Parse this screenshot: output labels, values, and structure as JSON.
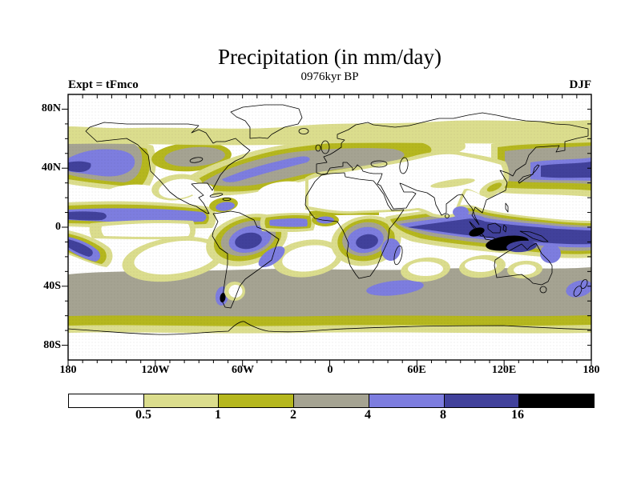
{
  "header": {
    "title": "Precipitation (in mm/day)",
    "subtitle": "0976kyr BP",
    "experiment_label": "Expt = tFmco",
    "season": "DJF"
  },
  "axes": {
    "lat_tick_labels": [
      "80N",
      "40N",
      "0",
      "40S",
      "80S"
    ],
    "lon_tick_labels": [
      "180",
      "120W",
      "60W",
      "0",
      "60E",
      "120E",
      "180"
    ],
    "lat_range_deg": [
      -90,
      90
    ],
    "lon_range_deg": [
      -180,
      180
    ],
    "minor_tick_interval_deg": 10
  },
  "colorbar": {
    "labels": [
      "0.5",
      "1",
      "2",
      "4",
      "8",
      "16"
    ],
    "levels_mm_day": [
      0.5,
      1,
      2,
      4,
      8,
      16
    ],
    "colors": [
      "#ffffff",
      "#dbdd8d",
      "#b5b71e",
      "#a5a392",
      "#7d7ddf",
      "#41419b",
      "#000000"
    ],
    "units": "mm/day",
    "label_position": "at segment boundaries"
  },
  "chart_data": {
    "type": "heatmap",
    "title": "Precipitation (in mm/day)",
    "subtitle": "0976kyr BP",
    "experiment": "tFmco",
    "season": "DJF",
    "projection": "equirectangular world map with coastlines",
    "lon_axis": {
      "ticks": [
        "180",
        "120W",
        "60W",
        "0",
        "60E",
        "120E",
        "180"
      ],
      "range": [
        -180,
        180
      ]
    },
    "lat_axis": {
      "ticks": [
        "80N",
        "40N",
        "0",
        "40S",
        "80S"
      ],
      "range": [
        -90,
        90
      ]
    },
    "contour_levels_mm_day": [
      0.5,
      1,
      2,
      4,
      8,
      16
    ],
    "palette": [
      "#ffffff",
      "#dbdd8d",
      "#b5b71e",
      "#a5a392",
      "#7d7ddf",
      "#41419b",
      "#000000"
    ],
    "legend_position": "horizontal colorbar below map",
    "grid": false,
    "features": [
      {
        "region": "Indian Ocean / Maritime Continent band",
        "lon": "50E-180",
        "lat": "5N-15S",
        "precip_mm_day": "8-16, >16 (black) over Indonesia and north of Australia"
      },
      {
        "region": "Equatorial black maxima",
        "lon": "96E-137E",
        "lat": "0-16S",
        "precip_mm_day": ">16"
      },
      {
        "region": "NH Pacific storm track",
        "lon": "140E-125W",
        "lat": "30N-52N",
        "precip_mm_day": "4-8, core 8-16 near Japan and dateline"
      },
      {
        "region": "NH Atlantic storm track",
        "lon": "75W-15W",
        "lat": "32N-50N",
        "precip_mm_day": "4-8 in gray 2-4 envelope"
      },
      {
        "region": "Pacific ITCZ",
        "lon": "180-90W",
        "lat": "2N-12N",
        "precip_mm_day": "4-8, 8-16 just east of dateline"
      },
      {
        "region": "SPCZ",
        "lon": "150E-145W",
        "lat": "3S-30S",
        "precip_mm_day": "4-8, 8-16 near dateline"
      },
      {
        "region": "Equatorial cold tongue",
        "lon": "160W-95W",
        "lat": "0-6S",
        "precip_mm_day": "<0.5-1"
      },
      {
        "region": "South America / Amazon-SACZ",
        "lon": "75W-35W",
        "lat": "2N-25S",
        "precip_mm_day": "4-8 with 8-16 core"
      },
      {
        "region": "Congo basin",
        "lon": "10E-35E",
        "lat": "0-16S",
        "precip_mm_day": "4-8 with 8-16 core"
      },
      {
        "region": "Atlantic ITCZ",
        "lon": "45W-10W",
        "lat": "0-6N",
        "precip_mm_day": "4-8 narrow band"
      },
      {
        "region": "Caribbean patch",
        "lon": "85W-62W",
        "lat": "10N-20N",
        "precip_mm_day": "4-8"
      },
      {
        "region": "Subtropical dry zones (SE Pacific, S Atlantic, S Indian x2)",
        "lon": "various",
        "lat": "10S-35S",
        "precip_mm_day": "<0.5"
      },
      {
        "region": "Sahara-Arabia-Central Asia-N China dry zone",
        "lon": "15W-120E",
        "lat": "10N-50N",
        "precip_mm_day": "<0.5"
      },
      {
        "region": "SW North America / Mexico / Gulf",
        "lon": "120W-80W",
        "lat": "15N-35N",
        "precip_mm_day": "<0.5"
      },
      {
        "region": "Arctic",
        "lat": ">68N",
        "precip_mm_day": "<0.5 with 0.5-1 fringe 55N-68N"
      },
      {
        "region": "Southern Ocean",
        "lat": "30S-60S",
        "precip_mm_day": "2-4 circumglobal gray band"
      },
      {
        "region": "Antarctic ring",
        "lat": "52S-68S",
        "precip_mm_day": "1-2 olive / 0.5-1 ring, <0.5 over Antarctica"
      },
      {
        "region": "Patagonian coast spot",
        "lon": "76W-70W",
        "lat": "42S-54S",
        "precip_mm_day": "8-16 with >16 dot; rain shadow <0.5 to the east"
      },
      {
        "region": "New Zealand / S Indian mid-lat patches",
        "lat": "36S-48S",
        "precip_mm_day": "4-8"
      }
    ]
  }
}
